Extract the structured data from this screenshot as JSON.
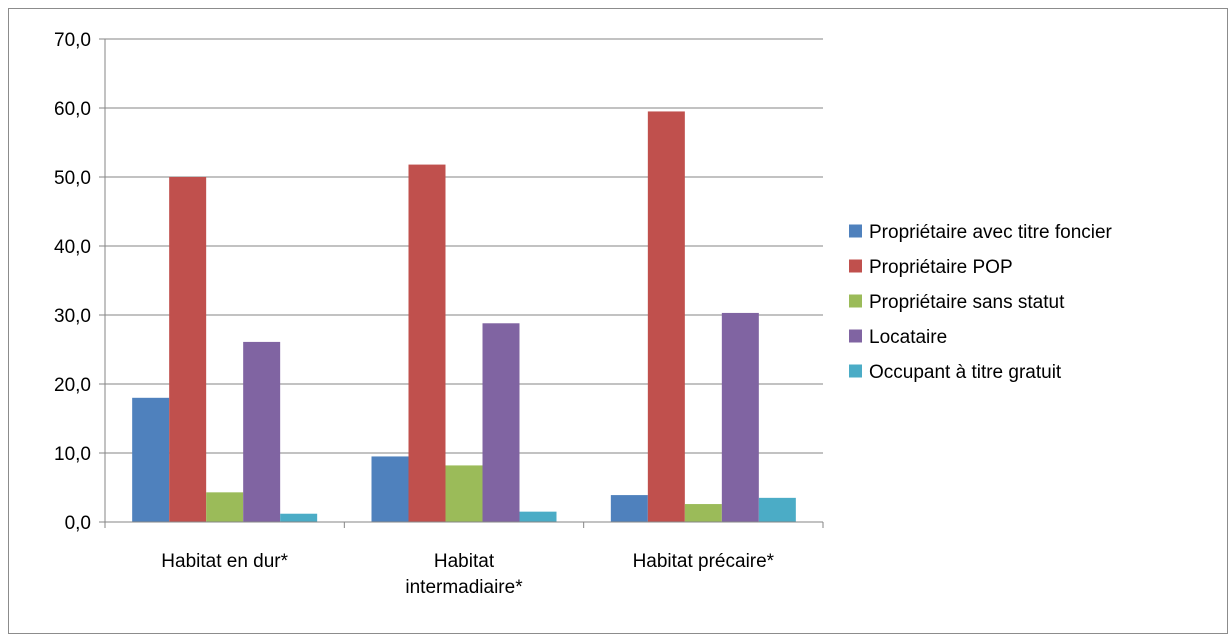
{
  "chart_data": {
    "type": "bar",
    "title": "",
    "xlabel": "",
    "ylabel": "",
    "categories": [
      [
        "Habitat en dur*"
      ],
      [
        "Habitat",
        "intermadiaire*"
      ],
      [
        "Habitat précaire*"
      ]
    ],
    "series": [
      {
        "name": "Propriétaire avec titre foncier",
        "color": "#4f81bd",
        "values": [
          18.0,
          9.5,
          3.9
        ]
      },
      {
        "name": "Propriétaire POP",
        "color": "#c0504d",
        "values": [
          50.0,
          51.8,
          59.5
        ]
      },
      {
        "name": "Propriétaire sans statut",
        "color": "#9bbb59",
        "values": [
          4.3,
          8.2,
          2.6
        ]
      },
      {
        "name": "Locataire",
        "color": "#8064a2",
        "values": [
          26.1,
          28.8,
          30.3
        ]
      },
      {
        "name": "Occupant à titre gratuit",
        "color": "#4bacc6",
        "values": [
          1.2,
          1.5,
          3.5
        ]
      }
    ],
    "ylim": [
      0,
      70
    ],
    "yticks": [
      0,
      10,
      20,
      30,
      40,
      50,
      60,
      70
    ],
    "ytick_labels": [
      "0,0",
      "10,0",
      "20,0",
      "30,0",
      "40,0",
      "50,0",
      "60,0",
      "70,0"
    ],
    "grid": true,
    "legend_position": "right"
  }
}
